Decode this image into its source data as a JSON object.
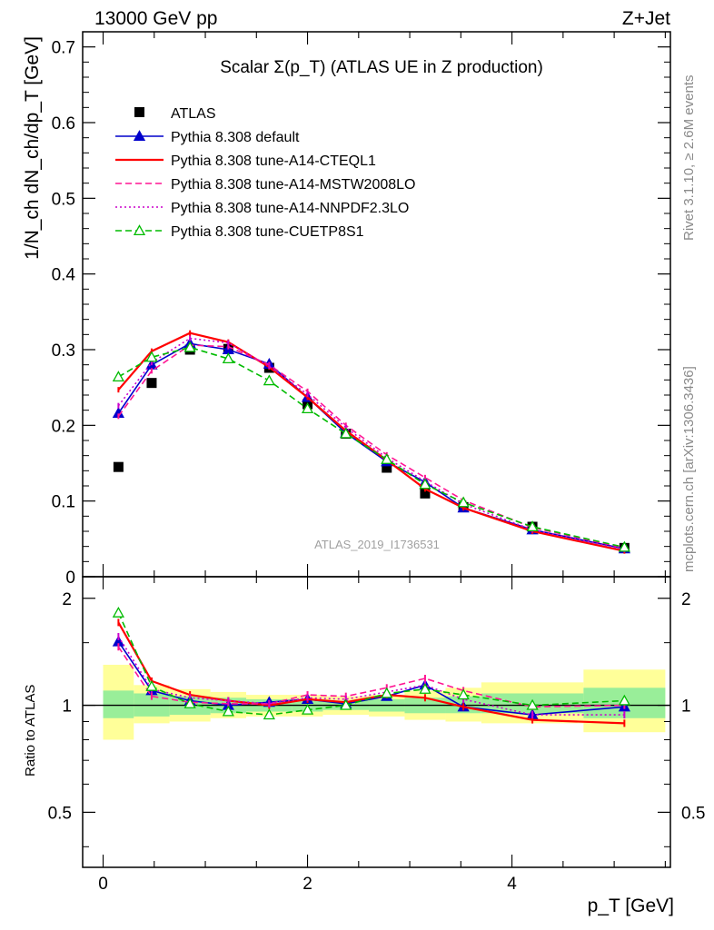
{
  "header": {
    "left": "13000 GeV pp",
    "right": "Z+Jet"
  },
  "side": {
    "rivet": "Rivet 3.1.10, ≥ 2.6M events",
    "mcplots": "mcplots.cern.ch [arXiv:1306.3436]"
  },
  "main_plot": {
    "title": "Scalar Σ(p_T) (ATLAS UE in Z production)",
    "ylabel": "1/N_ch dN_ch/dp_T [GeV]",
    "watermark": "ATLAS_2019_I1736531"
  },
  "ratio_plot": {
    "ylabel": "Ratio to ATLAS"
  },
  "xaxis": {
    "label": "p_T [GeV]"
  },
  "chart_data": [
    {
      "type": "line",
      "panel": "main",
      "title": "Scalar Σ(p_T) (ATLAS UE in Z production)",
      "xlabel": "p_T [GeV]",
      "ylabel": "1/N_ch dN_ch/dp_T [GeV]",
      "xlim": [
        -0.2,
        5.55
      ],
      "ylim": [
        0,
        0.72
      ],
      "xticks": [
        0,
        2,
        4
      ],
      "yticks": [
        0.1,
        0.2,
        0.3,
        0.4,
        0.5,
        0.6,
        0.7
      ],
      "legend_position": "top-left",
      "x": [
        0.15,
        0.475,
        0.85,
        1.225,
        1.625,
        2.0,
        2.375,
        2.775,
        3.15,
        3.525,
        4.2,
        5.1
      ],
      "series": [
        {
          "name": "ATLAS",
          "color": "#000000",
          "style": "data",
          "values": [
            0.145,
            0.256,
            0.3,
            0.301,
            0.276,
            0.228,
            0.189,
            0.144,
            0.11,
            0.092,
            0.066,
            0.038
          ]
        },
        {
          "name": "Pythia 8.308 default",
          "color": "#0000cc",
          "style": "solid-triangle",
          "values": [
            0.216,
            0.28,
            0.308,
            0.3,
            0.281,
            0.237,
            0.19,
            0.152,
            0.125,
            0.091,
            0.062,
            0.037
          ]
        },
        {
          "name": "Pythia 8.308 tune-A14-CTEQL1",
          "color": "#ff0000",
          "style": "solid",
          "values": [
            0.247,
            0.298,
            0.322,
            0.31,
            0.277,
            0.237,
            0.193,
            0.154,
            0.116,
            0.091,
            0.06,
            0.034
          ]
        },
        {
          "name": "Pythia 8.308 tune-A14-MSTW2008LO",
          "color": "#ff1493",
          "style": "dashed",
          "values": [
            0.212,
            0.272,
            0.306,
            0.304,
            0.28,
            0.245,
            0.2,
            0.161,
            0.131,
            0.101,
            0.065,
            0.038
          ]
        },
        {
          "name": "Pythia 8.308 tune-A14-NNPDF2.3LO",
          "color": "#cc00cc",
          "style": "dotted",
          "values": [
            0.226,
            0.283,
            0.315,
            0.309,
            0.278,
            0.241,
            0.197,
            0.157,
            0.126,
            0.096,
            0.062,
            0.036
          ]
        },
        {
          "name": "Pythia 8.308 tune-CUETP8S1",
          "color": "#00bb00",
          "style": "dashed-open-triangle",
          "values": [
            0.264,
            0.29,
            0.303,
            0.288,
            0.259,
            0.222,
            0.189,
            0.155,
            0.122,
            0.098,
            0.066,
            0.039
          ]
        }
      ]
    },
    {
      "type": "line",
      "panel": "ratio",
      "ylabel": "Ratio to ATLAS",
      "xlabel": "p_T [GeV]",
      "xlim": [
        -0.2,
        5.55
      ],
      "ylim": [
        0.35,
        2.3
      ],
      "yticks": [
        0.5,
        1,
        2
      ],
      "x": [
        0.15,
        0.475,
        0.85,
        1.225,
        1.625,
        2.0,
        2.375,
        2.775,
        3.15,
        3.525,
        4.2,
        5.1
      ],
      "bin_edges": [
        0.0,
        0.3,
        0.65,
        1.05,
        1.4,
        1.85,
        2.15,
        2.6,
        2.95,
        3.35,
        3.7,
        4.7,
        5.5
      ],
      "band_inner": [
        [
          0.92,
          1.1
        ],
        [
          0.93,
          1.08
        ],
        [
          0.94,
          1.06
        ],
        [
          0.95,
          1.05
        ],
        [
          0.96,
          1.04
        ],
        [
          0.96,
          1.04
        ],
        [
          0.97,
          1.03
        ],
        [
          0.96,
          1.04
        ],
        [
          0.95,
          1.05
        ],
        [
          0.95,
          1.06
        ],
        [
          0.95,
          1.08
        ],
        [
          0.92,
          1.12
        ]
      ],
      "band_outer": [
        [
          0.8,
          1.3
        ],
        [
          0.89,
          1.14
        ],
        [
          0.9,
          1.11
        ],
        [
          0.92,
          1.09
        ],
        [
          0.93,
          1.07
        ],
        [
          0.93,
          1.07
        ],
        [
          0.94,
          1.06
        ],
        [
          0.93,
          1.07
        ],
        [
          0.91,
          1.1
        ],
        [
          0.9,
          1.12
        ],
        [
          0.89,
          1.16
        ],
        [
          0.84,
          1.26
        ]
      ],
      "series": [
        {
          "name": "Pythia 8.308 default",
          "color": "#0000cc",
          "style": "solid-triangle",
          "values": [
            1.51,
            1.1,
            1.03,
            1.0,
            1.02,
            1.04,
            1.01,
            1.06,
            1.14,
            0.99,
            0.94,
            0.99
          ]
        },
        {
          "name": "Pythia 8.308 tune-A14-CTEQL1",
          "color": "#ff0000",
          "style": "solid",
          "values": [
            1.71,
            1.17,
            1.07,
            1.03,
            1.0,
            1.04,
            1.02,
            1.07,
            1.05,
            0.99,
            0.91,
            0.89
          ]
        },
        {
          "name": "Pythia 8.308 tune-A14-MSTW2008LO",
          "color": "#ff1493",
          "style": "dashed",
          "values": [
            1.46,
            1.06,
            1.02,
            1.01,
            1.01,
            1.07,
            1.06,
            1.12,
            1.19,
            1.1,
            0.99,
            1.0
          ]
        },
        {
          "name": "Pythia 8.308 tune-A14-NNPDF2.3LO",
          "color": "#cc00cc",
          "style": "dotted",
          "values": [
            1.56,
            1.11,
            1.05,
            1.03,
            1.01,
            1.05,
            1.04,
            1.09,
            1.14,
            1.04,
            0.94,
            0.94
          ]
        },
        {
          "name": "Pythia 8.308 tune-CUETP8S1",
          "color": "#00bb00",
          "style": "dashed-open-triangle",
          "values": [
            1.82,
            1.13,
            1.01,
            0.96,
            0.94,
            0.97,
            1.0,
            1.08,
            1.11,
            1.07,
            1.0,
            1.03
          ]
        }
      ]
    }
  ]
}
